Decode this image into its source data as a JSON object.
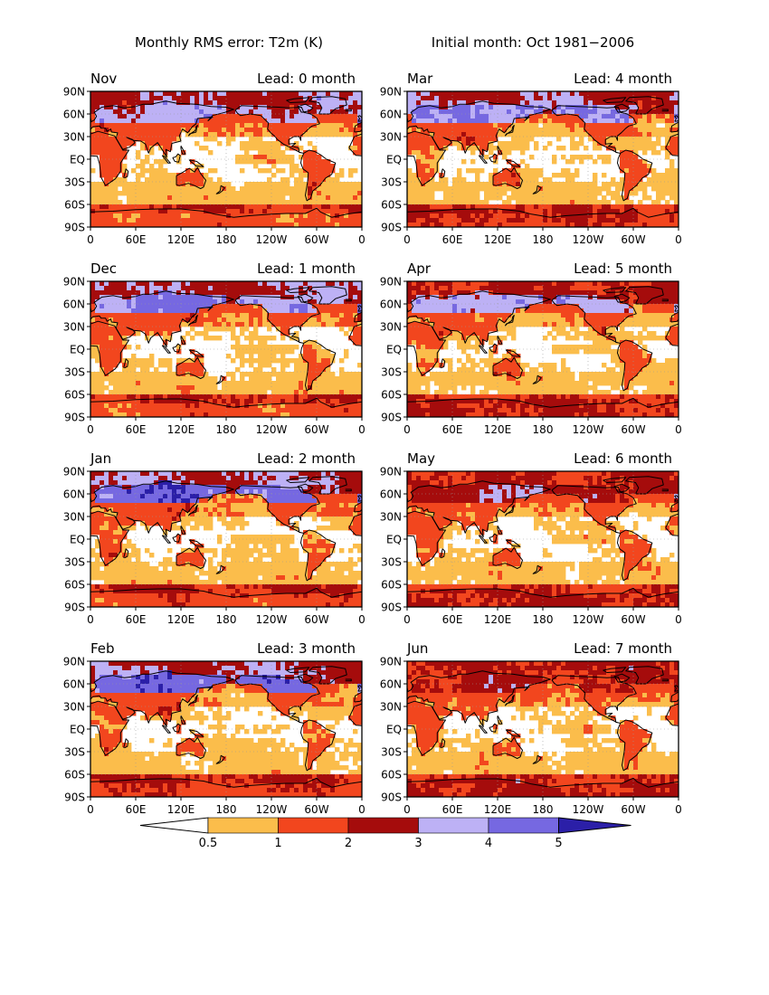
{
  "header": {
    "left_title": "Monthly RMS error: T2m (K)",
    "right_title": "Initial month: Oct 1981−2006"
  },
  "lat_labels": [
    "90N",
    "60N",
    "30N",
    "EQ",
    "30S",
    "60S",
    "90S"
  ],
  "lon_labels_standard": [
    "0",
    "60E",
    "120E",
    "180",
    "120W",
    "60W",
    "0"
  ],
  "lon_labels_shifted": [
    "0",
    "60E",
    "120E",
    "180",
    "120W",
    "60W",
    "0"
  ],
  "panels": [
    {
      "month": "Nov",
      "lead": "Lead: 0 month",
      "axis": "lon_labels_standard",
      "error_level": 0
    },
    {
      "month": "Mar",
      "lead": "Lead: 4 month",
      "axis": "lon_labels_standard",
      "error_level": 4
    },
    {
      "month": "Dec",
      "lead": "Lead: 1 month",
      "axis": "lon_labels_standard",
      "error_level": 1
    },
    {
      "month": "Apr",
      "lead": "Lead: 5 month",
      "axis": "lon_labels_standard",
      "error_level": 5
    },
    {
      "month": "Jan",
      "lead": "Lead: 2 month",
      "axis": "lon_labels_standard",
      "error_level": 2
    },
    {
      "month": "May",
      "lead": "Lead: 6 month",
      "axis": "lon_labels_standard",
      "error_level": 6
    },
    {
      "month": "Feb",
      "lead": "Lead: 3 month",
      "axis": "lon_labels_standard",
      "error_level": 3
    },
    {
      "month": "Jun",
      "lead": "Lead: 7 month",
      "axis": "lon_labels_standard",
      "error_level": 7
    }
  ],
  "colorbar": {
    "thresholds": [
      "0.5",
      "1",
      "2",
      "3",
      "4",
      "5"
    ],
    "colors": [
      "#ffffff",
      "#fbbd4b",
      "#f2461e",
      "#a50c0c",
      "#bdb1f5",
      "#7668e1",
      "#2b1fa8"
    ]
  },
  "colors": {
    "ocean_low": "#ffffff",
    "band_0_5_1": "#fbbd4b",
    "band_1_2": "#f2461e",
    "band_2_3": "#a50c0c",
    "band_3_4": "#bdb1f5",
    "band_4_5": "#7668e1",
    "band_gt5": "#2b1fa8",
    "coast": "#000000"
  }
}
